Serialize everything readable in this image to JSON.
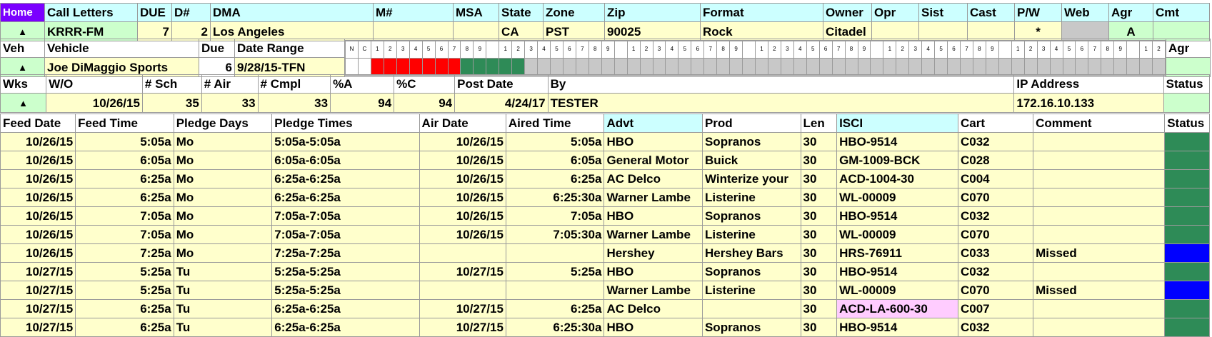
{
  "header": {
    "home": "Home",
    "labels": [
      "Call Letters",
      "DUE",
      "D#",
      "DMA",
      "M#",
      "MSA",
      "State",
      "Zone",
      "Zip",
      "Format",
      "Owner",
      "Opr",
      "Sist",
      "Cast",
      "P/W",
      "Web",
      "Agr",
      "Cmt"
    ],
    "values": {
      "call_letters": "KRRR-FM",
      "due": "7",
      "dnum": "2",
      "dma": "Los Angeles",
      "mnum": "",
      "msa": "",
      "state": "CA",
      "zone": "PST",
      "zip": "90025",
      "format": "Rock",
      "owner": "Citadel",
      "opr": "",
      "sist": "",
      "cast": "",
      "pw": "*",
      "web": "",
      "agr": "A",
      "cmt": ""
    }
  },
  "vehicle": {
    "labels": {
      "veh": "Veh",
      "vehicle": "Vehicle",
      "due": "Due",
      "date_range": "Date Range",
      "agr": "Agr"
    },
    "values": {
      "vehicle": "Joe DiMaggio Sports",
      "due": "6",
      "date_range": "9/28/15-TFN"
    },
    "grid_top": [
      "N",
      "C",
      "1",
      "2",
      "3",
      "4",
      "5",
      "6",
      "7",
      "8",
      "9",
      "",
      "1",
      "2",
      "3",
      "4",
      "5",
      "6",
      "7",
      "8",
      "9",
      "",
      "1",
      "2",
      "3",
      "4",
      "5",
      "6",
      "7",
      "8",
      "9",
      "",
      "1",
      "2",
      "3",
      "4",
      "5",
      "6",
      "7",
      "8",
      "9",
      "",
      "1",
      "2",
      "3",
      "4",
      "5",
      "6",
      "7",
      "8",
      "9",
      "",
      "1",
      "2",
      "3",
      "4",
      "5",
      "6",
      "7",
      "8",
      "9",
      "",
      "1",
      "2"
    ],
    "grid_fill": [
      "wht",
      "wht",
      "red",
      "red",
      "red",
      "red",
      "red",
      "red",
      "red",
      "grn",
      "grn",
      "grn",
      "grn",
      "grn",
      "gr",
      "gr",
      "gr",
      "gr",
      "gr",
      "gr",
      "gr",
      "gr",
      "gr",
      "gr",
      "gr",
      "gr",
      "gr",
      "gr",
      "gr",
      "gr",
      "gr",
      "gr",
      "gr",
      "gr",
      "gr",
      "gr",
      "gr",
      "gr",
      "gr",
      "gr",
      "gr",
      "gr",
      "gr",
      "gr",
      "gr",
      "gr",
      "gr",
      "gr",
      "gr",
      "gr",
      "gr",
      "gr",
      "gr",
      "gr",
      "gr",
      "gr",
      "gr",
      "gr",
      "gr",
      "gr",
      "gr",
      "gr",
      "gr",
      "gr"
    ]
  },
  "work_order": {
    "labels": {
      "wks": "Wks",
      "wo": "W/O",
      "sch": "# Sch",
      "air": "# Air",
      "cmpl": "# Cmpl",
      "pa": "%A",
      "pc": "%C",
      "post_date": "Post Date",
      "by": "By",
      "ip": "IP Address",
      "status": "Status"
    },
    "values": {
      "wo": "10/26/15",
      "sch": "35",
      "air": "33",
      "cmpl": "33",
      "pa": "94",
      "pc": "94",
      "post_date": "4/24/17",
      "by": "TESTER",
      "ip": "172.16.10.133"
    }
  },
  "spots": {
    "columns": [
      "Feed Date",
      "Feed Time",
      "Pledge Days",
      "Pledge Times",
      "Air Date",
      "Aired Time",
      "Advt",
      "Prod",
      "Len",
      "ISCI",
      "Cart",
      "Comment",
      "Status"
    ],
    "rows": [
      {
        "feed_date": "10/26/15",
        "feed_time": "5:05a",
        "pledge_days": "Mo",
        "pledge_times": "5:05a-5:05a",
        "air_date": "10/26/15",
        "aired_time": "5:05a",
        "advt": "HBO",
        "prod": "Sopranos",
        "len": "30",
        "isci": "HBO-9514",
        "cart": "C032",
        "comment": "",
        "status": "green",
        "isci_highlight": false
      },
      {
        "feed_date": "10/26/15",
        "feed_time": "6:05a",
        "pledge_days": "Mo",
        "pledge_times": "6:05a-6:05a",
        "air_date": "10/26/15",
        "aired_time": "6:05a",
        "advt": "General Motor",
        "prod": "Buick",
        "len": "30",
        "isci": "GM-1009-BCK",
        "cart": "C028",
        "comment": "",
        "status": "green",
        "isci_highlight": false
      },
      {
        "feed_date": "10/26/15",
        "feed_time": "6:25a",
        "pledge_days": "Mo",
        "pledge_times": "6:25a-6:25a",
        "air_date": "10/26/15",
        "aired_time": "6:25a",
        "advt": "AC Delco",
        "prod": "Winterize your",
        "len": "30",
        "isci": "ACD-1004-30",
        "cart": "C004",
        "comment": "",
        "status": "green",
        "isci_highlight": false
      },
      {
        "feed_date": "10/26/15",
        "feed_time": "6:25a",
        "pledge_days": "Mo",
        "pledge_times": "6:25a-6:25a",
        "air_date": "10/26/15",
        "aired_time": "6:25:30a",
        "advt": "Warner Lambe",
        "prod": "Listerine",
        "len": "30",
        "isci": "WL-00009",
        "cart": "C070",
        "comment": "",
        "status": "green",
        "isci_highlight": false
      },
      {
        "feed_date": "10/26/15",
        "feed_time": "7:05a",
        "pledge_days": "Mo",
        "pledge_times": "7:05a-7:05a",
        "air_date": "10/26/15",
        "aired_time": "7:05a",
        "advt": "HBO",
        "prod": "Sopranos",
        "len": "30",
        "isci": "HBO-9514",
        "cart": "C032",
        "comment": "",
        "status": "green",
        "isci_highlight": false
      },
      {
        "feed_date": "10/26/15",
        "feed_time": "7:05a",
        "pledge_days": "Mo",
        "pledge_times": "7:05a-7:05a",
        "air_date": "10/26/15",
        "aired_time": "7:05:30a",
        "advt": "Warner Lambe",
        "prod": "Listerine",
        "len": "30",
        "isci": "WL-00009",
        "cart": "C070",
        "comment": "",
        "status": "green",
        "isci_highlight": false
      },
      {
        "feed_date": "10/26/15",
        "feed_time": "7:25a",
        "pledge_days": "Mo",
        "pledge_times": "7:25a-7:25a",
        "air_date": "",
        "aired_time": "",
        "advt": "Hershey",
        "prod": "Hershey Bars",
        "len": "30",
        "isci": "HRS-76911",
        "cart": "C033",
        "comment": "Missed",
        "status": "blue",
        "isci_highlight": false
      },
      {
        "feed_date": "10/27/15",
        "feed_time": "5:25a",
        "pledge_days": "Tu",
        "pledge_times": "5:25a-5:25a",
        "air_date": "10/27/15",
        "aired_time": "5:25a",
        "advt": "HBO",
        "prod": "Sopranos",
        "len": "30",
        "isci": "HBO-9514",
        "cart": "C032",
        "comment": "",
        "status": "green",
        "isci_highlight": false
      },
      {
        "feed_date": "10/27/15",
        "feed_time": "5:25a",
        "pledge_days": "Tu",
        "pledge_times": "5:25a-5:25a",
        "air_date": "",
        "aired_time": "",
        "advt": "Warner Lambe",
        "prod": "Listerine",
        "len": "30",
        "isci": "WL-00009",
        "cart": "C070",
        "comment": "Missed",
        "status": "blue",
        "isci_highlight": false
      },
      {
        "feed_date": "10/27/15",
        "feed_time": "6:25a",
        "pledge_days": "Tu",
        "pledge_times": "6:25a-6:25a",
        "air_date": "10/27/15",
        "aired_time": "6:25a",
        "advt": "AC Delco",
        "prod": "",
        "len": "30",
        "isci": "ACD-LA-600-30",
        "cart": "C007",
        "comment": "",
        "status": "green",
        "isci_highlight": true
      },
      {
        "feed_date": "10/27/15",
        "feed_time": "6:25a",
        "pledge_days": "Tu",
        "pledge_times": "6:25a-6:25a",
        "air_date": "10/27/15",
        "aired_time": "6:25:30a",
        "advt": "HBO",
        "prod": "Sopranos",
        "len": "30",
        "isci": "HBO-9514",
        "cart": "C032",
        "comment": "",
        "status": "green",
        "isci_highlight": false
      }
    ]
  }
}
